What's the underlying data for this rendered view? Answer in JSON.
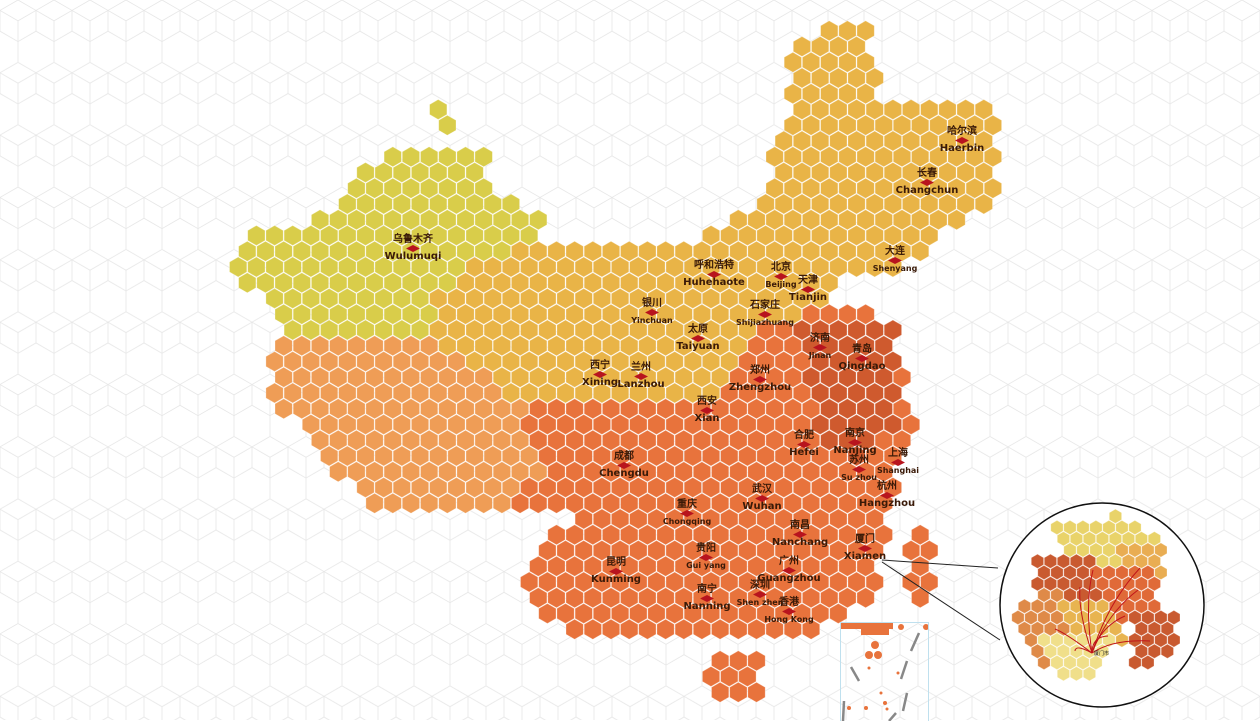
{
  "map": {
    "colors": {
      "northwest": "#d9cd4a",
      "north": "#e9b447",
      "southwest": "#ef9d56",
      "south": "#e8733c",
      "southeast_dark": "#cf5a2e",
      "marker": "#b8141e",
      "grid": "#e4e4e4"
    },
    "cities": [
      {
        "cn": "哈尔滨",
        "en": "Haerbin"
      },
      {
        "cn": "长春",
        "en": "Changchun"
      },
      {
        "cn": "大连",
        "en": "Shenyang"
      },
      {
        "cn": "乌鲁木齐",
        "en": "Wulumuqi"
      },
      {
        "cn": "呼和浩特",
        "en": "Huhehaote"
      },
      {
        "cn": "北京",
        "en": "Beijing"
      },
      {
        "cn": "天津",
        "en": "Tianjin"
      },
      {
        "cn": "银川",
        "en": "Yinchuan"
      },
      {
        "cn": "石家庄",
        "en": "Shijiazhuang"
      },
      {
        "cn": "太原",
        "en": "Taiyuan"
      },
      {
        "cn": "济南",
        "en": "Jinan"
      },
      {
        "cn": "青岛",
        "en": "Qingdao"
      },
      {
        "cn": "西宁",
        "en": "Xining"
      },
      {
        "cn": "兰州",
        "en": "Lanzhou"
      },
      {
        "cn": "郑州",
        "en": "Zhengzhou"
      },
      {
        "cn": "西安",
        "en": "Xian"
      },
      {
        "cn": "合肥",
        "en": "Hefei"
      },
      {
        "cn": "南京",
        "en": "Nanjing"
      },
      {
        "cn": "苏州",
        "en": "Su zhou"
      },
      {
        "cn": "上海",
        "en": "Shanghai"
      },
      {
        "cn": "成都",
        "en": "Chengdu"
      },
      {
        "cn": "杭州",
        "en": "Hangzhou"
      },
      {
        "cn": "武汉",
        "en": "Wuhan"
      },
      {
        "cn": "重庆",
        "en": "Chongqing"
      },
      {
        "cn": "南昌",
        "en": "Nanchang"
      },
      {
        "cn": "厦门",
        "en": "Xiamen"
      },
      {
        "cn": "贵阳",
        "en": "Gui yang"
      },
      {
        "cn": "昆明",
        "en": "Kunming"
      },
      {
        "cn": "广州",
        "en": "Guangzhou"
      },
      {
        "cn": "深圳",
        "en": "Shen zhen"
      },
      {
        "cn": "南宁",
        "en": "Nanning"
      },
      {
        "cn": "香港",
        "en": "Hong Kong"
      }
    ],
    "inset": {
      "focus_city": "厦门市"
    }
  }
}
